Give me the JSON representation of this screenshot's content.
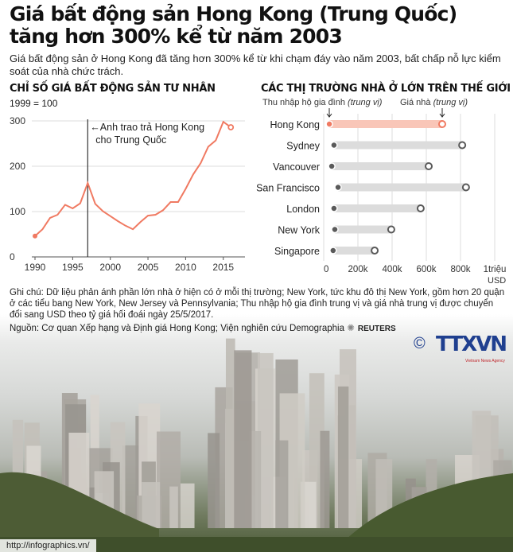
{
  "header": {
    "title_line1": "Giá bất động sản Hong Kong (Trung Quốc)",
    "title_line2": "tăng hơn 300% kể từ năm 2003",
    "subtitle": "Giá bất động sản ở Hong Kong đã tăng hơn 300% kể từ khi chạm đáy vào năm 2003, bất chấp nỗ lực kiểm soát của nhà chức trách."
  },
  "colors": {
    "accent": "#f07a62",
    "accent_light": "#f9c6b8",
    "dot_gray": "#5a5a5a",
    "bar_gray": "#dcdcdc"
  },
  "chart_data": [
    {
      "type": "line",
      "title": "CHỈ SỐ GIÁ BẤT ĐỘNG SẢN TƯ NHÂN",
      "subtitle": "1999 = 100",
      "x": [
        1990,
        1991,
        1992,
        1993,
        1994,
        1995,
        1996,
        1997,
        1998,
        1999,
        2000,
        2001,
        2002,
        2003,
        2004,
        2005,
        2006,
        2007,
        2008,
        2009,
        2010,
        2011,
        2012,
        2013,
        2014,
        2015,
        2016
      ],
      "values": [
        46,
        61,
        86,
        93,
        115,
        107,
        118,
        163,
        117,
        101,
        90,
        79,
        69,
        61,
        77,
        91,
        93,
        103,
        121,
        121,
        150,
        182,
        207,
        243,
        257,
        298,
        286
      ],
      "xlim": [
        1990,
        2018
      ],
      "ylim": [
        0,
        300
      ],
      "x_ticks": [
        "1990",
        "1995",
        "2000",
        "2005",
        "2010",
        "2015"
      ],
      "y_ticks": [
        "0",
        "100",
        "200",
        "300"
      ],
      "grid": true,
      "annotation": {
        "x": 1997,
        "text_line1": "Anh trao trả Hong Kong",
        "text_line2": "cho Trung Quốc"
      }
    },
    {
      "type": "dumbbell",
      "title": "CÁC THỊ TRƯỜNG NHÀ Ở LỚN TRÊN THẾ GIỚI",
      "legend": {
        "income": "Thu nhập hộ gia đình",
        "price": "Giá nhà",
        "qualifier": "(trung vị)"
      },
      "categories": [
        "Hong Kong",
        "Sydney",
        "Vancouver",
        "San Francisco",
        "London",
        "New York",
        "Singapore"
      ],
      "series": [
        {
          "name": "Thu nhập hộ gia đình (trung vị)",
          "values": [
            33000,
            60000,
            47000,
            84000,
            60000,
            65000,
            55000
          ]
        },
        {
          "name": "Giá nhà (trung vị)",
          "values": [
            693000,
            810000,
            614000,
            832000,
            567000,
            395000,
            298000
          ]
        }
      ],
      "xlim": [
        0,
        1000000
      ],
      "x_ticks": [
        "0",
        "200k",
        "400k",
        "600k",
        "800k",
        "1triệu"
      ],
      "x_unit": "USD",
      "highlight": "Hong Kong"
    }
  ],
  "notes": "Ghi chú: Dữ liệu phản ánh phần lớn nhà ở hiện có ở mỗi thị trường; New York, tức khu đô thị New York, gồm hơn 20 quận ở các tiểu bang New York, New Jersey và Pennsylvania; Thu nhập hộ gia đình trung vị và giá nhà trung vị được chuyển đổi sang USD theo tỷ giá hối đoái ngày 25/5/2017.",
  "source": "Nguồn: Cơ quan Xếp hạng và Định giá Hong Kong; Viện nghiên cứu Demographia",
  "reuters": "REUTERS",
  "logo": {
    "copyright": "©",
    "name": "TTXVN",
    "tagline": "Vietnam News Agency"
  },
  "footer": "http://infographics.vn/"
}
